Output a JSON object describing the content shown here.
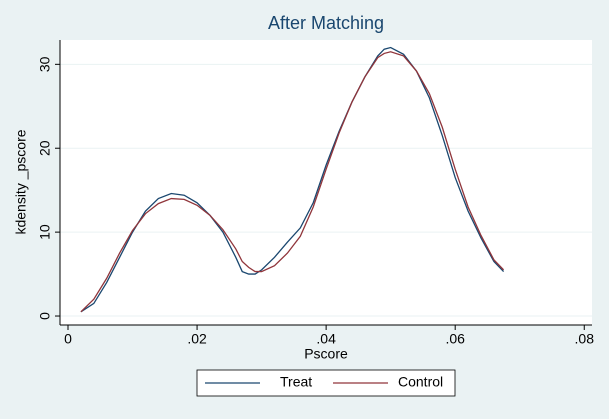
{
  "chart_data": {
    "type": "line",
    "title": "After Matching",
    "xlabel": "Pscore",
    "ylabel": "kdensity _pscore",
    "x": [
      0.002,
      0.004,
      0.006,
      0.008,
      0.01,
      0.012,
      0.014,
      0.016,
      0.018,
      0.02,
      0.022,
      0.024,
      0.026,
      0.027,
      0.028,
      0.029,
      0.03,
      0.032,
      0.034,
      0.036,
      0.038,
      0.04,
      0.042,
      0.044,
      0.046,
      0.048,
      0.049,
      0.05,
      0.052,
      0.054,
      0.056,
      0.058,
      0.06,
      0.062,
      0.064,
      0.066,
      0.0675
    ],
    "series": [
      {
        "name": "Treat",
        "color": "#1a476f",
        "values": [
          0.5,
          1.5,
          4,
          7,
          10,
          12.5,
          14,
          14.6,
          14.4,
          13.5,
          12,
          10,
          7,
          5.3,
          5,
          5,
          5.5,
          7,
          8.8,
          10.5,
          13.5,
          18,
          22,
          25.5,
          28.5,
          31,
          31.8,
          32,
          31.2,
          29.2,
          26,
          21.5,
          16.5,
          12.5,
          9.3,
          6.5,
          5.3
        ]
      },
      {
        "name": "Control",
        "color": "#90353b",
        "values": [
          0.5,
          2,
          4.5,
          7.5,
          10.2,
          12.2,
          13.4,
          14,
          13.9,
          13.2,
          12,
          10.3,
          8,
          6.5,
          5.8,
          5.3,
          5.3,
          6,
          7.5,
          9.5,
          13,
          17.5,
          21.8,
          25.5,
          28.5,
          30.8,
          31.3,
          31.5,
          31,
          29.2,
          26.5,
          22.5,
          17.5,
          13,
          9.6,
          6.7,
          5.5
        ]
      }
    ],
    "xlim": [
      -0.00124,
      0.0812
    ],
    "ylim": [
      -1.07,
      32.9
    ],
    "xticks": [
      0,
      {
        "value": 0.02,
        "label": ".02"
      },
      {
        "value": 0.04,
        "label": ".04"
      },
      {
        "value": 0.06,
        "label": ".06"
      },
      {
        "value": 0.08,
        "label": ".08"
      }
    ],
    "yticks": [
      0,
      10,
      20,
      30
    ],
    "grid": true,
    "legend": "bottom"
  }
}
